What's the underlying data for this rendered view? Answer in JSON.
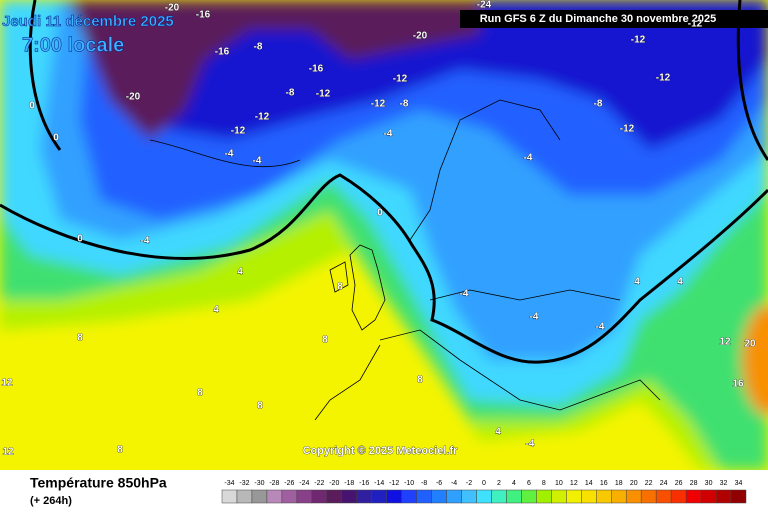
{
  "header": {
    "date": "Jeudi 11 décembre 2025",
    "time": "7:00 locale",
    "run": "Run GFS 6 Z du Dimanche 30 novembre 2025"
  },
  "copyright": "Copyright © 2025 Meteociel.fr",
  "footer": {
    "title": "Température 850hPa",
    "lead": "(+ 264h)"
  },
  "legend": {
    "ticks": [
      -34,
      -32,
      -30,
      -28,
      -26,
      -24,
      -22,
      -20,
      -18,
      -16,
      -14,
      -12,
      -10,
      -8,
      -6,
      -4,
      -2,
      0,
      2,
      4,
      6,
      8,
      10,
      12,
      14,
      16,
      18,
      20,
      22,
      24,
      26,
      28,
      30,
      32,
      34
    ],
    "colors": [
      "#d8d8d8",
      "#b8b8b8",
      "#989898",
      "#b888b8",
      "#a060a0",
      "#884088",
      "#702870",
      "#5a1c5a",
      "#461470",
      "#3020a0",
      "#2020c0",
      "#1010e0",
      "#2040ff",
      "#2060ff",
      "#2080ff",
      "#30a0ff",
      "#40c0ff",
      "#40e0ff",
      "#40f0c0",
      "#40f080",
      "#60f040",
      "#a0f000",
      "#d0f000",
      "#f0f000",
      "#f8e000",
      "#f8c800",
      "#f8b000",
      "#f89000",
      "#f87000",
      "#f85000",
      "#f83000",
      "#f00000",
      "#d00000",
      "#b00000",
      "#900000"
    ]
  },
  "map_labels": [
    -20,
    -16,
    -16,
    -8,
    -16,
    -20,
    -8,
    -12,
    -12,
    -12,
    -4,
    -4,
    -20,
    -12,
    -8,
    -12,
    -4,
    -12,
    -12,
    -8,
    -12,
    -4,
    0,
    0,
    0,
    0,
    -4,
    4,
    4,
    8,
    8,
    8,
    8,
    8,
    12,
    12,
    4,
    4,
    12,
    20,
    16,
    -4,
    -4,
    -4,
    -4,
    4,
    8,
    -24,
    -12,
    8
  ]
}
